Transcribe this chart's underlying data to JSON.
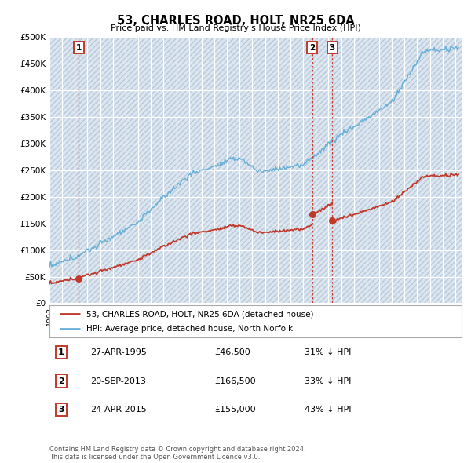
{
  "title": "53, CHARLES ROAD, HOLT, NR25 6DA",
  "subtitle": "Price paid vs. HM Land Registry's House Price Index (HPI)",
  "ylim": [
    0,
    500000
  ],
  "yticks": [
    0,
    50000,
    100000,
    150000,
    200000,
    250000,
    300000,
    350000,
    400000,
    450000,
    500000
  ],
  "ytick_labels": [
    "£0",
    "£50K",
    "£100K",
    "£150K",
    "£200K",
    "£250K",
    "£300K",
    "£350K",
    "£400K",
    "£450K",
    "£500K"
  ],
  "xlim_start": 1993.0,
  "xlim_end": 2025.5,
  "hpi_color": "#6ab0d8",
  "price_color": "#c0392b",
  "vline_color": "#c0392b",
  "sales": [
    {
      "date_year": 1995.32,
      "price": 46500,
      "label": "1"
    },
    {
      "date_year": 2013.72,
      "price": 166500,
      "label": "2"
    },
    {
      "date_year": 2015.31,
      "price": 155000,
      "label": "3"
    }
  ],
  "legend_property_label": "53, CHARLES ROAD, HOLT, NR25 6DA (detached house)",
  "legend_hpi_label": "HPI: Average price, detached house, North Norfolk",
  "table_rows": [
    {
      "num": "1",
      "date": "27-APR-1995",
      "price": "£46,500",
      "hpi": "31% ↓ HPI"
    },
    {
      "num": "2",
      "date": "20-SEP-2013",
      "price": "£166,500",
      "hpi": "33% ↓ HPI"
    },
    {
      "num": "3",
      "date": "24-APR-2015",
      "price": "£155,000",
      "hpi": "43% ↓ HPI"
    }
  ],
  "footnote": "Contains HM Land Registry data © Crown copyright and database right 2024.\nThis data is licensed under the Open Government Licence v3.0.",
  "plot_bg_color": "#dce6f0",
  "grid_color": "#ffffff",
  "hatch_color": "#b8c8d8"
}
